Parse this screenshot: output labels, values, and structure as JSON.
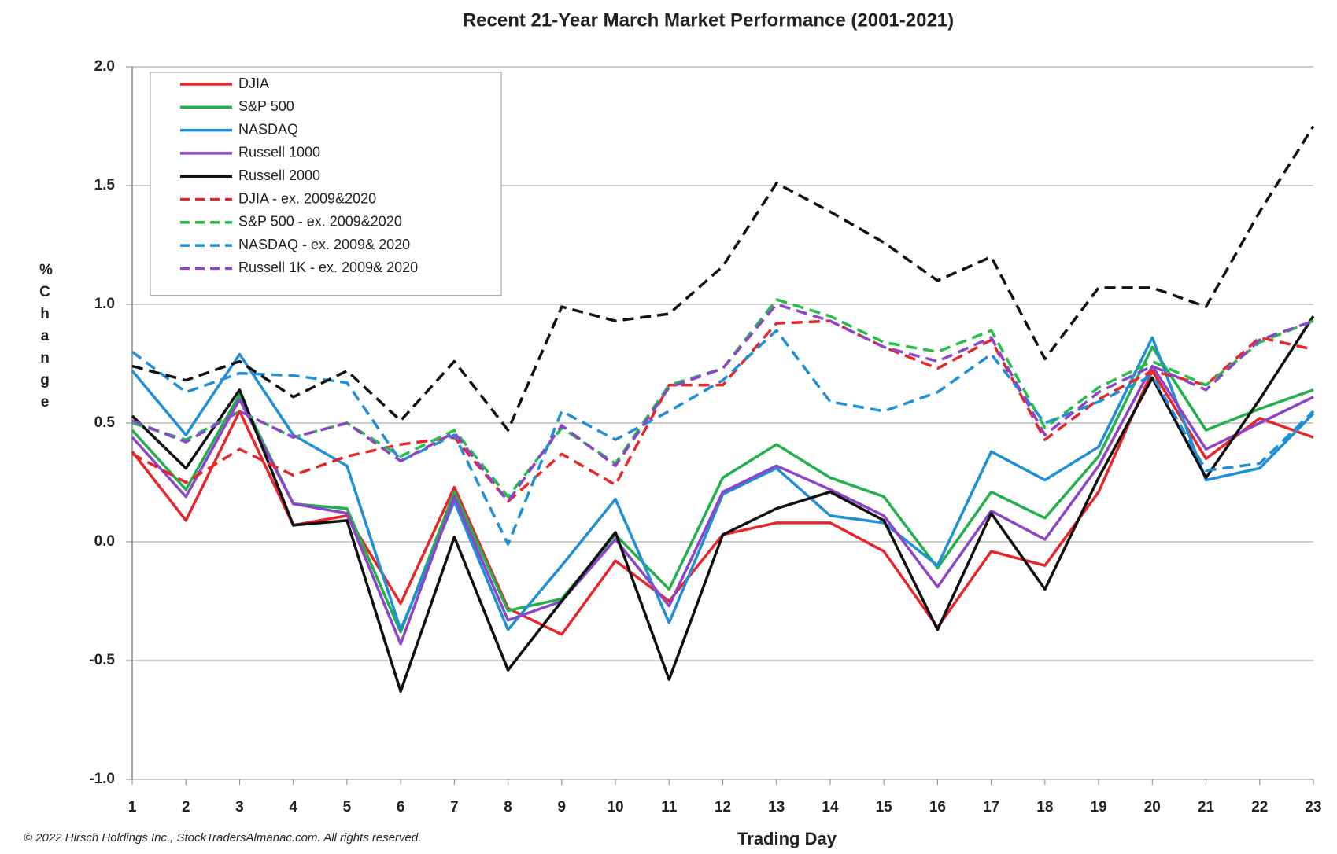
{
  "chart_data": {
    "type": "line",
    "title": "Recent 21-Year March Market Performance (2001-2021)",
    "y_label": "% Change",
    "x_label": "Trading Day",
    "note": "© 2022 Hirsch Holdings Inc., StockTradersAlmanac.com. All rights reserved.",
    "x": [
      1,
      2,
      3,
      4,
      5,
      6,
      7,
      8,
      9,
      10,
      11,
      12,
      13,
      14,
      15,
      16,
      17,
      18,
      19,
      20,
      21,
      22,
      23
    ],
    "xlim": [
      1,
      23
    ],
    "xticks": [
      1,
      2,
      3,
      4,
      5,
      6,
      7,
      8,
      9,
      10,
      11,
      12,
      13,
      14,
      15,
      16,
      17,
      18,
      19,
      20,
      21,
      22,
      23
    ],
    "ylim": [
      -1,
      2
    ],
    "yticks": [
      {
        "value": -1,
        "label": "-1.0"
      },
      {
        "value": -0.5,
        "label": "-0.5"
      },
      {
        "value": 0,
        "label": "0.0"
      },
      {
        "value": 0.5,
        "label": "0.5"
      },
      {
        "value": 1,
        "label": "1.0"
      },
      {
        "value": 1.5,
        "label": "1.5"
      },
      {
        "value": 2,
        "label": "2.0"
      }
    ],
    "negative_tick_color": "#e0262a",
    "grid": true,
    "legend": "upper left",
    "series": [
      {
        "name": "DJIA",
        "color": "#e8262a",
        "dash": false,
        "values": [
          0.38,
          0.09,
          0.55,
          0.07,
          0.11,
          -0.26,
          0.23,
          -0.28,
          -0.39,
          -0.08,
          -0.25,
          0.03,
          0.08,
          0.08,
          -0.04,
          -0.36,
          -0.04,
          -0.1,
          0.21,
          0.72,
          0.35,
          0.52,
          0.44
        ]
      },
      {
        "name": "S&P 500",
        "color": "#22b04b",
        "dash": false,
        "values": [
          0.47,
          0.22,
          0.62,
          0.16,
          0.14,
          -0.38,
          0.21,
          -0.29,
          -0.24,
          0.03,
          -0.2,
          0.27,
          0.41,
          0.27,
          0.19,
          -0.11,
          0.21,
          0.1,
          0.36,
          0.82,
          0.47,
          0.56,
          0.64
        ]
      },
      {
        "name": "NASDAQ",
        "color": "#1f8fd6",
        "dash": false,
        "values": [
          0.72,
          0.45,
          0.79,
          0.45,
          0.32,
          -0.37,
          0.17,
          -0.37,
          -0.1,
          0.18,
          -0.34,
          0.2,
          0.31,
          0.11,
          0.08,
          -0.1,
          0.38,
          0.26,
          0.4,
          0.86,
          0.26,
          0.31,
          0.54
        ]
      },
      {
        "name": "Russell 1000",
        "color": "#8e44c9",
        "dash": false,
        "values": [
          0.44,
          0.19,
          0.6,
          0.16,
          0.12,
          -0.43,
          0.19,
          -0.33,
          -0.25,
          0.01,
          -0.27,
          0.21,
          0.32,
          0.22,
          0.11,
          -0.19,
          0.13,
          0.01,
          0.32,
          0.74,
          0.39,
          0.5,
          0.61
        ]
      },
      {
        "name": "Russell 2000",
        "color": "#111111",
        "dash": false,
        "values": [
          0.53,
          0.31,
          0.64,
          0.07,
          0.09,
          -0.63,
          0.02,
          -0.54,
          -0.25,
          0.04,
          -0.58,
          0.03,
          0.14,
          0.21,
          0.09,
          -0.37,
          0.12,
          -0.2,
          0.27,
          0.69,
          0.27,
          0.6,
          0.95
        ]
      },
      {
        "name": "DJIA - ex. 2009&2020",
        "color": "#e8262a",
        "dash": true,
        "values": [
          0.37,
          0.25,
          0.39,
          0.28,
          0.36,
          0.41,
          0.44,
          0.17,
          0.37,
          0.24,
          0.66,
          0.66,
          0.92,
          0.93,
          0.82,
          0.73,
          0.85,
          0.43,
          0.6,
          0.72,
          0.66,
          0.86,
          0.81
        ]
      },
      {
        "name": "S&P 500 - ex. 2009&2020",
        "color": "#22c04b",
        "dash": true,
        "values": [
          0.5,
          0.43,
          0.55,
          0.44,
          0.5,
          0.36,
          0.47,
          0.19,
          0.48,
          0.33,
          0.66,
          0.73,
          1.02,
          0.95,
          0.84,
          0.8,
          0.89,
          0.48,
          0.65,
          0.76,
          0.66,
          0.84,
          0.93
        ]
      },
      {
        "name": "NASDAQ - ex. 2009& 2020",
        "color": "#1f8fd6",
        "dash": true,
        "values": [
          0.8,
          0.63,
          0.71,
          0.7,
          0.67,
          0.34,
          0.45,
          -0.01,
          0.55,
          0.43,
          0.55,
          0.68,
          0.89,
          0.59,
          0.55,
          0.63,
          0.79,
          0.5,
          0.59,
          0.7,
          0.3,
          0.33,
          0.55
        ]
      },
      {
        "name": "Russell 1K - ex. 2009& 2020",
        "color": "#8e44c9",
        "dash": true,
        "values": [
          0.51,
          0.42,
          0.55,
          0.44,
          0.5,
          0.34,
          0.46,
          0.17,
          0.49,
          0.32,
          0.65,
          0.73,
          1.0,
          0.93,
          0.82,
          0.76,
          0.86,
          0.45,
          0.63,
          0.74,
          0.64,
          0.85,
          0.93
        ]
      },
      {
        "color": "#111111",
        "dash": true,
        "values": [
          0.74,
          0.68,
          0.76,
          0.61,
          0.72,
          0.51,
          0.76,
          0.47,
          0.99,
          0.93,
          0.96,
          1.16,
          1.51,
          1.39,
          1.26,
          1.1,
          1.2,
          0.77,
          1.07,
          1.07,
          0.99,
          1.39,
          1.75
        ]
      }
    ]
  }
}
